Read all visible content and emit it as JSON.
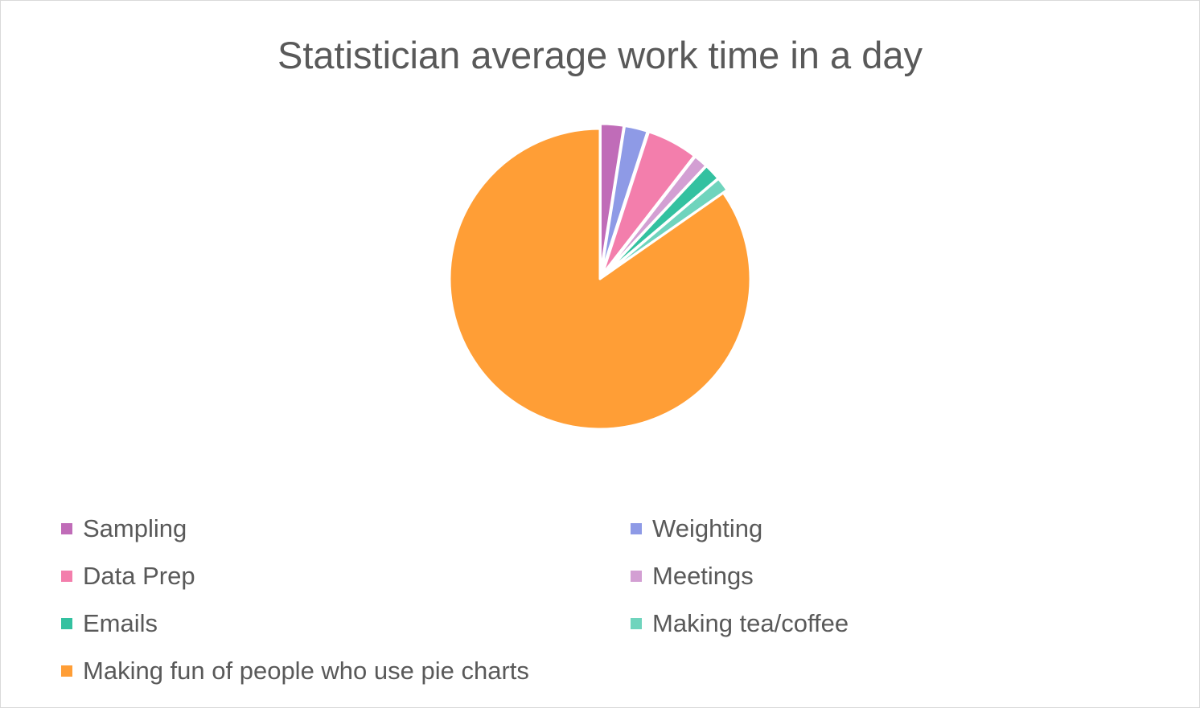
{
  "chart_data": {
    "type": "pie",
    "title": "Statistician average work time in a day",
    "categories": [
      "Sampling",
      "Weighting",
      "Data Prep",
      "Meetings",
      "Emails",
      "Making tea/coffee",
      "Making fun of people who use pie charts"
    ],
    "values": [
      2.5,
      2.5,
      5.5,
      1.5,
      1.8,
      1.5,
      84.7
    ],
    "colors": [
      "#c06cb8",
      "#8e9ae6",
      "#f37eac",
      "#d39fd3",
      "#33c1a0",
      "#6fd4bd",
      "#ff9e36"
    ],
    "start_angle_deg": 0,
    "direction": "clockwise",
    "exploded": true,
    "legend_position": "bottom"
  }
}
